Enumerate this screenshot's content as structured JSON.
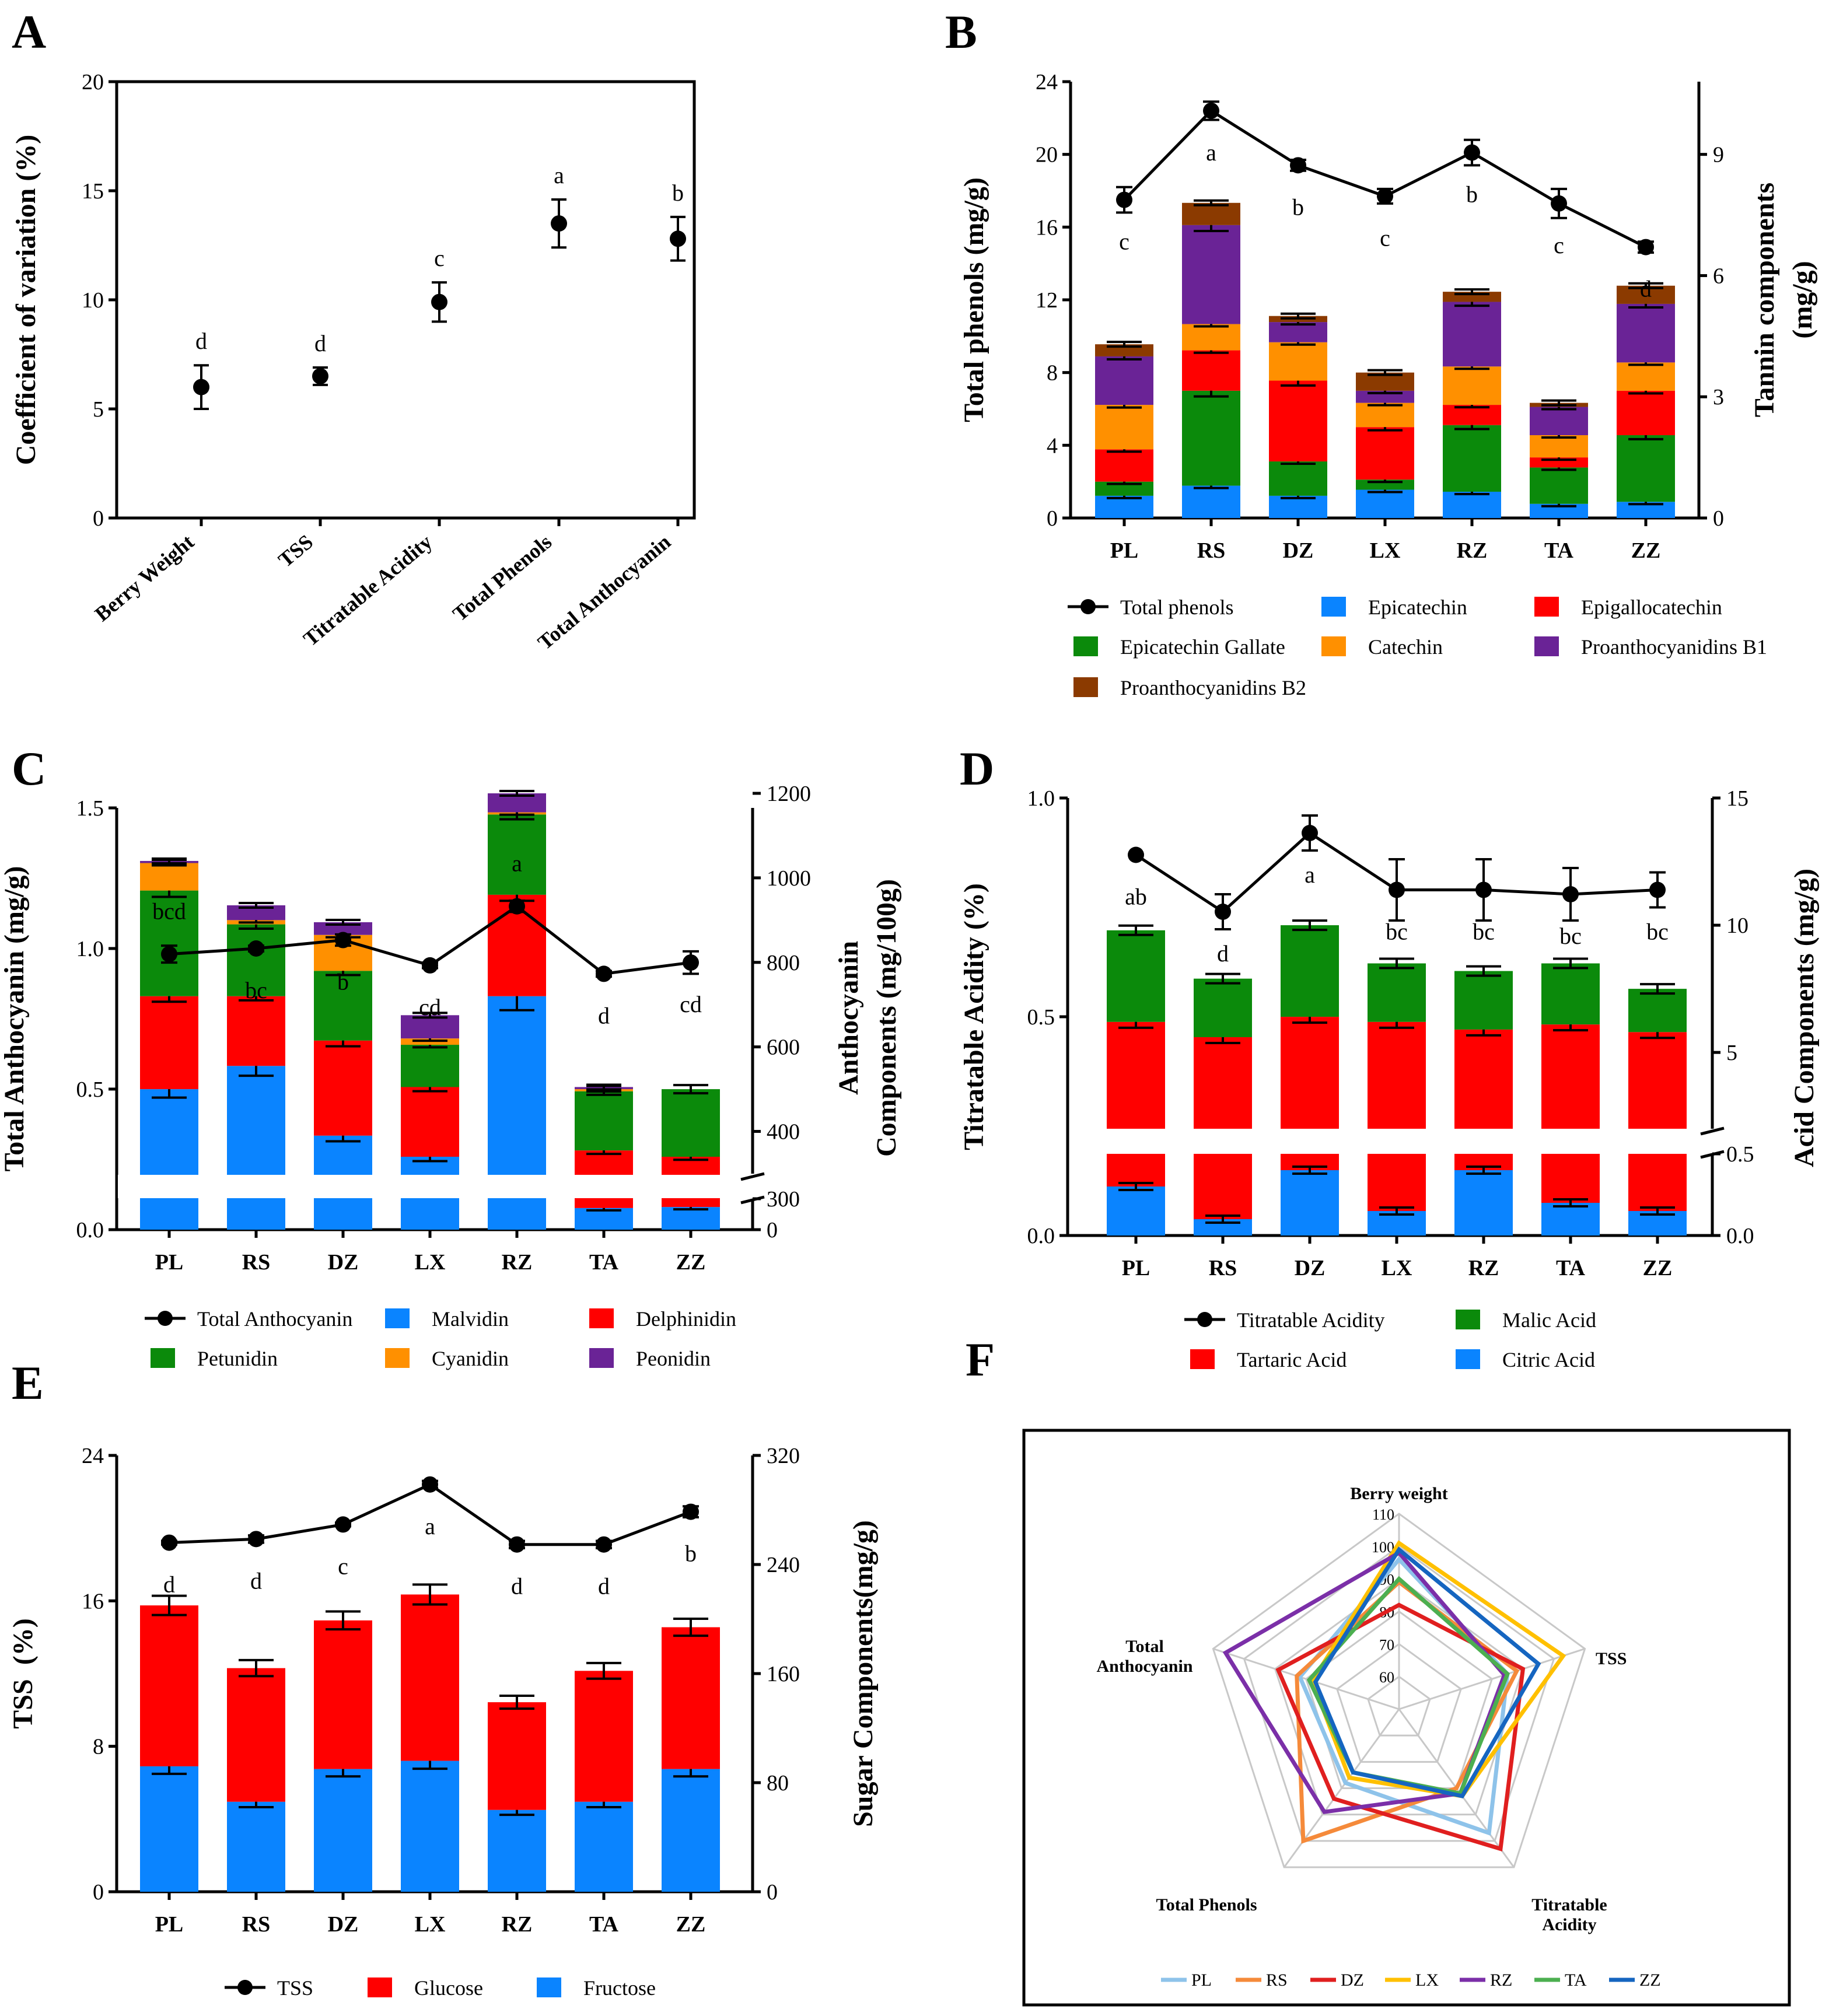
{
  "colors": {
    "black": "#000000",
    "blue": "#0a84ff",
    "green": "#0b8a0b",
    "red": "#ff0000",
    "orange": "#ff9000",
    "purple": "#6a2396",
    "brown": "#8b3a00",
    "radar_PL": "#8ec3ea",
    "radar_RS": "#f58a3a",
    "radar_DZ": "#e01f1f",
    "radar_LX": "#ffc000",
    "radar_RZ": "#7b2fa8",
    "radar_TA": "#4caf50",
    "radar_ZZ": "#1565c0",
    "radar_grid": "#c8c8c8"
  },
  "chart_data": [
    {
      "panel": "A",
      "type": "scatter",
      "ylabel": "Coefficient of variation (%)",
      "ylim": [
        0,
        20
      ],
      "yticks": [
        0,
        5,
        10,
        15,
        20
      ],
      "categories": [
        "Berry Weight",
        "TSS",
        "Titratable Acidity",
        "Total Phenols",
        "Total Anthocyanin"
      ],
      "values": [
        6.0,
        6.5,
        9.9,
        13.5,
        12.8
      ],
      "errors": [
        1.0,
        0.4,
        0.9,
        1.1,
        1.0
      ],
      "letters": [
        "d",
        "d",
        "c",
        "a",
        "b"
      ]
    },
    {
      "panel": "B",
      "type": "bar",
      "stacked": true,
      "categories": [
        "PL",
        "RS",
        "DZ",
        "LX",
        "RZ",
        "TA",
        "ZZ"
      ],
      "ylabel": "Total phenols (mg/g)",
      "ylim": [
        0,
        24
      ],
      "yticks": [
        0,
        4,
        8,
        12,
        16,
        20,
        24
      ],
      "y2label_line1": "Tannin components",
      "y2label_line2": "(mg/g)",
      "y2lim": [
        0,
        10.8
      ],
      "y2ticks": [
        0,
        3,
        6,
        9
      ],
      "line": {
        "name": "Total phenols",
        "values": [
          17.5,
          22.4,
          19.4,
          17.7,
          20.1,
          17.3,
          14.9
        ],
        "errors": [
          0.7,
          0.5,
          0.3,
          0.4,
          0.7,
          0.8,
          0.3
        ],
        "letters": [
          "c",
          "a",
          "b",
          "c",
          "b",
          "c",
          "d"
        ]
      },
      "series": [
        {
          "name": "Epicatechin",
          "color": "blue",
          "values": [
            0.55,
            0.8,
            0.55,
            0.7,
            0.65,
            0.35,
            0.4
          ]
        },
        {
          "name": "Epicatechin Gallate",
          "color": "green",
          "values": [
            0.35,
            2.35,
            0.85,
            0.25,
            1.65,
            0.9,
            1.65
          ]
        },
        {
          "name": "Epigallocatechin",
          "color": "red",
          "values": [
            0.8,
            1.0,
            2.0,
            1.3,
            0.5,
            0.25,
            1.1
          ]
        },
        {
          "name": "Catechin",
          "color": "orange",
          "values": [
            1.1,
            0.65,
            0.95,
            0.6,
            0.95,
            0.55,
            0.7
          ]
        },
        {
          "name": "Proanthocyanidins B1",
          "color": "purple",
          "values": [
            1.2,
            2.45,
            0.5,
            0.3,
            1.6,
            0.7,
            1.45
          ]
        },
        {
          "name": "Proanthocyanidins B2",
          "color": "brown",
          "values": [
            0.3,
            0.55,
            0.15,
            0.45,
            0.25,
            0.1,
            0.45
          ]
        }
      ],
      "legend": [
        "Total phenols",
        "Epicatechin",
        "Epigallocatechin",
        "Epicatechin Gallate",
        "Catechin",
        "Proanthocyanidins B1",
        "Proanthocyanidins B2"
      ]
    },
    {
      "panel": "C",
      "type": "bar",
      "stacked": true,
      "categories": [
        "PL",
        "RS",
        "DZ",
        "LX",
        "RZ",
        "TA",
        "ZZ"
      ],
      "ylabel": "Total  Anthocyanin (mg/g)",
      "ylim": [
        0,
        1.5
      ],
      "yticks": [
        0.0,
        0.5,
        1.0,
        1.5
      ],
      "y2label_line1": "Anthocyanin",
      "y2label_line2": "Components (mg/100g)",
      "y2ticks_upper": [
        400,
        600,
        800,
        1000,
        1200
      ],
      "y2ticks_lower": [
        0,
        300
      ],
      "axis_break_at": 300,
      "line": {
        "name": "Total Anthocyanin",
        "values": [
          0.98,
          1.0,
          1.03,
          0.94,
          1.15,
          0.91,
          0.95
        ],
        "errors": [
          0.03,
          0.01,
          0.02,
          0.01,
          0.02,
          0.01,
          0.04
        ],
        "letters": [
          "bcd",
          "bc",
          "b",
          "cd",
          "a",
          "d",
          "cd"
        ]
      },
      "series": [
        {
          "name": "Malvidin",
          "color": "blue",
          "values": [
            500,
            555,
            390,
            340,
            720,
            210,
            220
          ]
        },
        {
          "name": "Delphinidin",
          "color": "red",
          "values": [
            220,
            165,
            225,
            165,
            240,
            145,
            120
          ]
        },
        {
          "name": "Petunidin",
          "color": "green",
          "values": [
            250,
            170,
            165,
            100,
            190,
            140,
            160
          ]
        },
        {
          "name": "Cyanidin",
          "color": "orange",
          "values": [
            65,
            10,
            85,
            15,
            5,
            5,
            0
          ]
        },
        {
          "name": "Peonidin",
          "color": "purple",
          "values": [
            5,
            35,
            30,
            55,
            45,
            5,
            0
          ]
        }
      ],
      "legend": [
        "Total Anthocyanin",
        "Malvidin",
        "Delphinidin",
        "Petunidin",
        "Cyanidin",
        "Peonidin"
      ]
    },
    {
      "panel": "D",
      "type": "bar",
      "stacked": true,
      "categories": [
        "PL",
        "RS",
        "DZ",
        "LX",
        "RZ",
        "TA",
        "ZZ"
      ],
      "ylabel": "Titratable Acidity (%)",
      "ylim": [
        0,
        1.0
      ],
      "yticks": [
        0.0,
        0.5,
        1.0
      ],
      "y2label": "Acid Components (mg/g)",
      "y2ticks_upper": [
        5,
        10,
        15
      ],
      "y2ticks_lower": [
        0.0,
        0.5
      ],
      "line": {
        "name": "Titratable Acidity",
        "values": [
          0.87,
          0.74,
          0.92,
          0.79,
          0.79,
          0.78,
          0.79
        ],
        "errors": [
          0.0,
          0.04,
          0.04,
          0.07,
          0.07,
          0.06,
          0.04
        ],
        "letters": [
          "ab",
          "d",
          "a",
          "bc",
          "bc",
          "bc",
          "bc"
        ]
      },
      "series": [
        {
          "name": "Citric Acid",
          "color": "blue",
          "values": [
            0.3,
            0.1,
            0.4,
            0.15,
            0.4,
            0.2,
            0.15
          ]
        },
        {
          "name": "Tartaric Acid",
          "color": "red",
          "values": [
            4.2,
            3.6,
            4.4,
            4.2,
            3.9,
            4.1,
            3.8
          ]
        },
        {
          "name": "Malic Acid",
          "color": "green",
          "values": [
            3.6,
            2.3,
            3.6,
            2.3,
            2.3,
            2.4,
            1.7
          ]
        }
      ],
      "legend": [
        "Titratable Acidity",
        "Malic Acid",
        "Tartaric Acid",
        "Citric Acid"
      ]
    },
    {
      "panel": "E",
      "type": "bar",
      "stacked": true,
      "categories": [
        "PL",
        "RS",
        "DZ",
        "LX",
        "RZ",
        "TA",
        "ZZ"
      ],
      "ylabel": "TSS  (%)",
      "ylim": [
        0,
        24
      ],
      "yticks": [
        0,
        8,
        16,
        24
      ],
      "y2label": "Sugar Components(mg/g)",
      "y2lim": [
        0,
        320
      ],
      "y2ticks": [
        0,
        80,
        160,
        240,
        320
      ],
      "line": {
        "name": "TSS",
        "values": [
          19.2,
          19.4,
          20.2,
          22.4,
          19.1,
          19.1,
          20.9
        ],
        "errors": [
          0.1,
          0.2,
          0.1,
          0.2,
          0.2,
          0.2,
          0.3
        ],
        "letters": [
          "d",
          "d",
          "c",
          "a",
          "d",
          "d",
          "b"
        ]
      },
      "series": [
        {
          "name": "Fructose",
          "color": "blue",
          "values": [
            92,
            66,
            90,
            96,
            60,
            66,
            90
          ]
        },
        {
          "name": "Glucose",
          "color": "red",
          "values": [
            118,
            98,
            109,
            122,
            79,
            96,
            104
          ]
        }
      ],
      "legend": [
        "TSS",
        "Glucose",
        "Fructose"
      ]
    },
    {
      "panel": "F",
      "type": "radar",
      "axes": [
        "Berry weight",
        "TSS",
        "Titratable Acidity",
        "Total Phenols",
        "Total Anthocyanin"
      ],
      "axis_labels": [
        [
          "Berry weight"
        ],
        [
          "TSS"
        ],
        [
          "Titratable",
          "Acidity"
        ],
        [
          "Total Phenols"
        ],
        [
          "Total",
          "Anthocyanin"
        ]
      ],
      "rlim": [
        50,
        110
      ],
      "rticks": [
        60,
        70,
        80,
        90,
        100,
        110
      ],
      "series": [
        {
          "name": "PL",
          "color": "radar_PL",
          "values": [
            96,
            85,
            97,
            78,
            82
          ]
        },
        {
          "name": "RS",
          "color": "radar_RS",
          "values": [
            89,
            88,
            80,
            100,
            83
          ]
        },
        {
          "name": "DZ",
          "color": "radar_DZ",
          "values": [
            82,
            90,
            103,
            84,
            89
          ]
        },
        {
          "name": "LX",
          "color": "radar_LX",
          "values": [
            101,
            103,
            83,
            76,
            78
          ]
        },
        {
          "name": "RZ",
          "color": "radar_RZ",
          "values": [
            98,
            84,
            82,
            89,
            106
          ]
        },
        {
          "name": "TA",
          "color": "radar_TA",
          "values": [
            90,
            85,
            82,
            74,
            79
          ]
        },
        {
          "name": "ZZ",
          "color": "radar_ZZ",
          "values": [
            99,
            95,
            83,
            74,
            77
          ]
        }
      ]
    }
  ],
  "panel_letters": [
    "A",
    "B",
    "C",
    "D",
    "E",
    "F"
  ]
}
